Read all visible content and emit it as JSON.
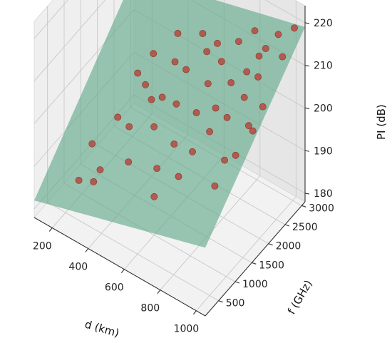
{
  "chart_data": {
    "type": "scatter",
    "projection": "3d",
    "title": "",
    "xlabel": "d (km)",
    "ylabel": "f (GHz)",
    "zlabel": "PI (dB)",
    "xlim": [
      100,
      1050
    ],
    "ylim": [
      100,
      3100
    ],
    "zlim": [
      178,
      224
    ],
    "xticks": [
      200,
      400,
      600,
      800,
      1000
    ],
    "yticks": [
      500,
      1000,
      1500,
      2000,
      2500,
      3000
    ],
    "zticks": [
      180,
      190,
      200,
      210,
      220
    ],
    "grid": true,
    "colors": {
      "surface": "#5fa887",
      "points": "#b5463c",
      "pane": "#efefef",
      "pane_z": "#e6e6e6"
    },
    "series": [
      {
        "type": "surface",
        "points_d": [
          100,
          1050
        ],
        "points_f": [
          100,
          3100
        ],
        "z_corners": {
          "d_min_f_min": 182,
          "d_max_f_min": 194,
          "d_min_f_max": 208,
          "d_max_f_max": 219
        }
      },
      {
        "type": "scatter",
        "points": [
          [
            200,
            900,
            182
          ],
          [
            200,
            1300,
            187
          ],
          [
            300,
            800,
            185
          ],
          [
            250,
            1800,
            190
          ],
          [
            350,
            1600,
            192
          ],
          [
            420,
            1200,
            189
          ],
          [
            460,
            2000,
            198
          ],
          [
            500,
            2500,
            201
          ],
          [
            300,
            2600,
            199
          ],
          [
            380,
            2900,
            203
          ],
          [
            600,
            1600,
            194
          ],
          [
            680,
            1300,
            191
          ],
          [
            720,
            2200,
            200
          ],
          [
            800,
            2700,
            206
          ],
          [
            850,
            3000,
            210
          ],
          [
            900,
            2500,
            209
          ],
          [
            980,
            2800,
            213
          ],
          [
            1000,
            3050,
            218
          ],
          [
            700,
            3000,
            208
          ],
          [
            560,
            2800,
            204
          ],
          [
            640,
            2400,
            202
          ],
          [
            760,
            1800,
            199
          ],
          [
            880,
            1600,
            197
          ],
          [
            940,
            2000,
            203
          ],
          [
            520,
            2100,
            197
          ],
          [
            420,
            2600,
            200
          ],
          [
            600,
            2900,
            206
          ],
          [
            780,
            3050,
            212
          ],
          [
            860,
            2300,
            205
          ],
          [
            960,
            1500,
            201
          ],
          [
            330,
            2200,
            196
          ],
          [
            470,
            1700,
            194
          ],
          [
            650,
            2000,
            199
          ],
          [
            250,
            2400,
            195
          ],
          [
            560,
            1300,
            190
          ],
          [
            820,
            2000,
            202
          ],
          [
            720,
            1500,
            196
          ],
          [
            1000,
            2100,
            208
          ],
          [
            920,
            3000,
            215
          ],
          [
            400,
            2000,
            196
          ],
          [
            500,
            3000,
            205
          ],
          [
            660,
            2700,
            205
          ],
          [
            300,
            1000,
            186
          ],
          [
            600,
            1000,
            187
          ],
          [
            900,
            1200,
            195
          ],
          [
            1000,
            1800,
            205
          ],
          [
            750,
            2500,
            204
          ],
          [
            850,
            2800,
            210
          ]
        ]
      }
    ]
  }
}
